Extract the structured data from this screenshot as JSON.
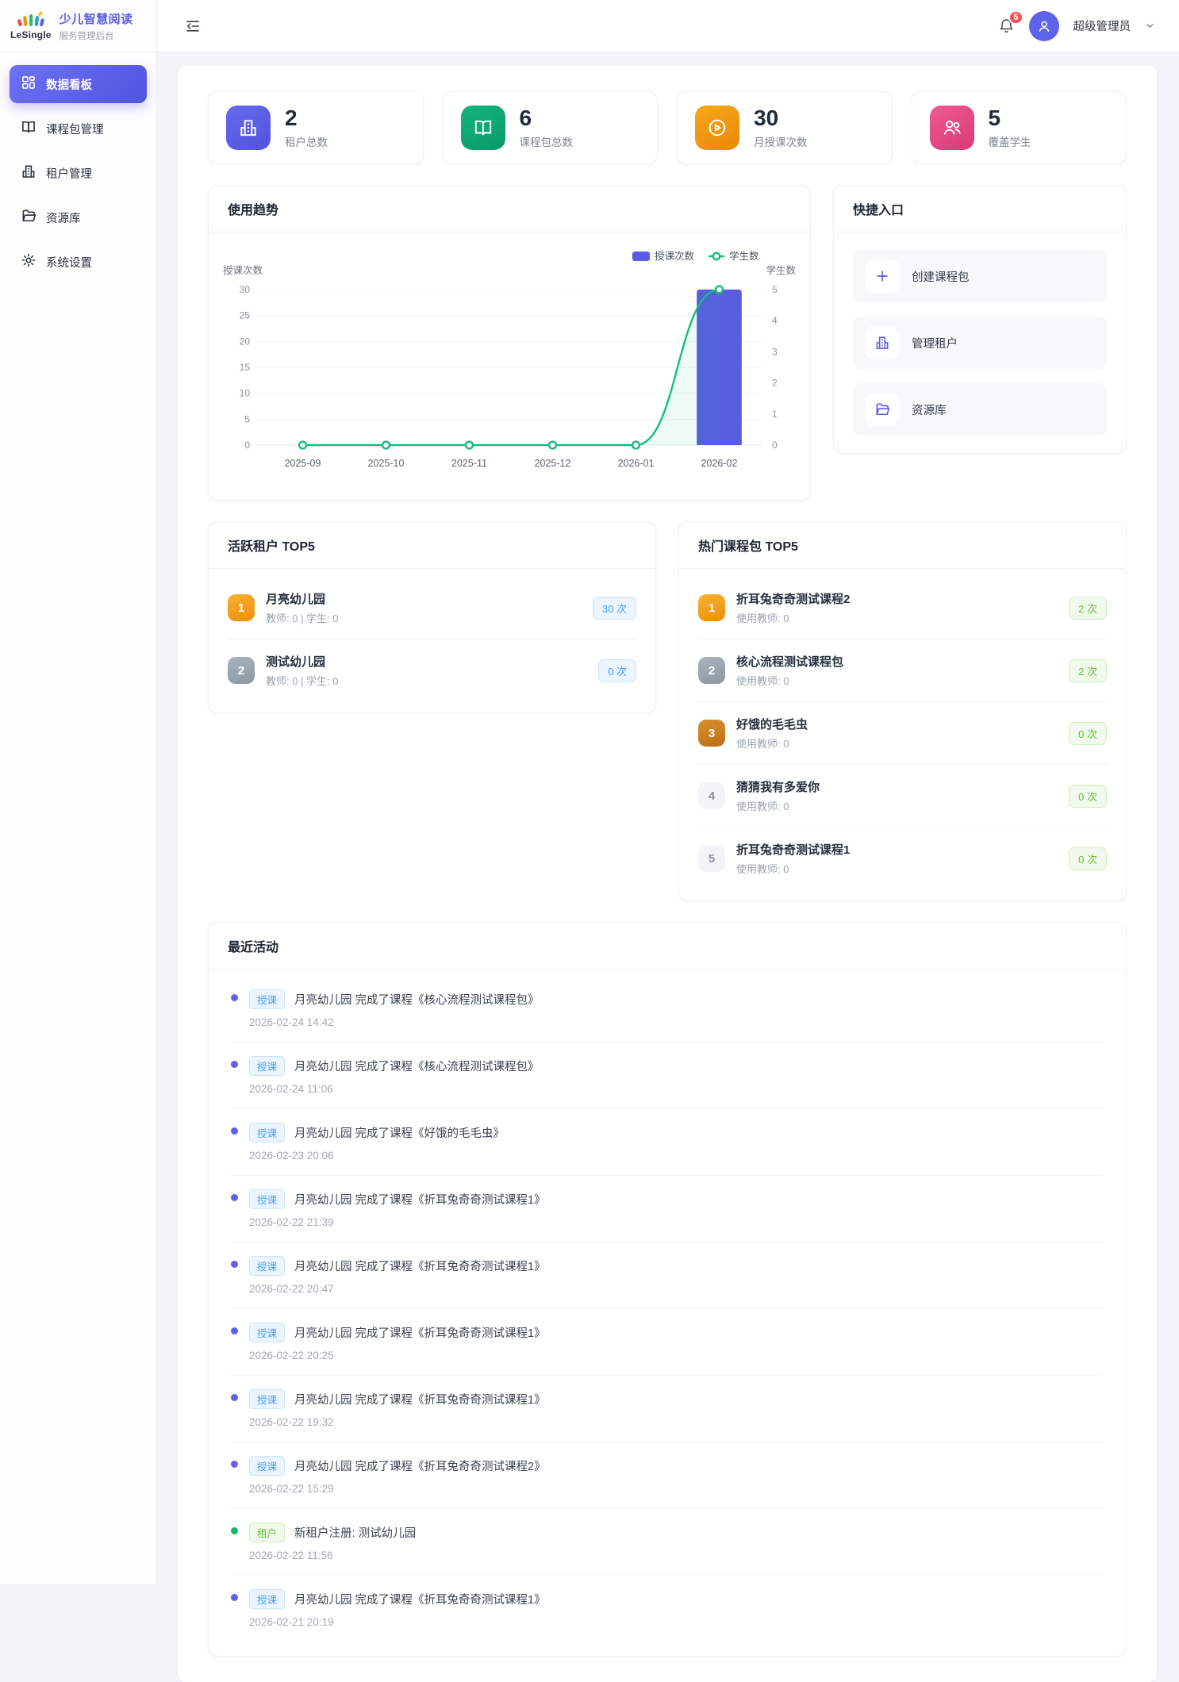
{
  "brand": {
    "logo_text": "LeSingle",
    "title": "少儿智慧阅读",
    "subtitle": "服务管理后台"
  },
  "sidebar": {
    "items": [
      {
        "label": "数据看板",
        "icon": "dashboard-grid",
        "active": true
      },
      {
        "label": "课程包管理",
        "icon": "book"
      },
      {
        "label": "租户管理",
        "icon": "building"
      },
      {
        "label": "资源库",
        "icon": "folder"
      },
      {
        "label": "系统设置",
        "icon": "gear"
      }
    ]
  },
  "header": {
    "notification_count": "5",
    "user_name": "超级管理员"
  },
  "stats": {
    "cards": [
      {
        "value": "2",
        "label": "租户总数",
        "icon": "building",
        "color": "#5a5ce0"
      },
      {
        "value": "6",
        "label": "课程包总数",
        "icon": "book",
        "color": "#10a56f"
      },
      {
        "value": "30",
        "label": "月授课次数",
        "icon": "play-circle",
        "color": "#ef9108"
      },
      {
        "value": "5",
        "label": "覆盖学生",
        "icon": "people",
        "color": "#e5487f"
      }
    ]
  },
  "usage_trend": {
    "title": "使用趋势"
  },
  "chart_data": {
    "type": "bar",
    "x": [
      "2025-09",
      "2025-10",
      "2025-11",
      "2025-12",
      "2026-01",
      "2026-02"
    ],
    "series": [
      {
        "name": "授课次数",
        "kind": "bar",
        "axis": "left",
        "color": "#5a5ce0",
        "values": [
          0,
          0,
          0,
          0,
          0,
          30
        ]
      },
      {
        "name": "学生数",
        "kind": "line",
        "axis": "right",
        "color": "#12c17c",
        "values": [
          0,
          0,
          0,
          0,
          0,
          5
        ]
      }
    ],
    "left_axis": {
      "title": "授课次数",
      "min": 0,
      "max": 30,
      "ticks": [
        0,
        5,
        10,
        15,
        20,
        25,
        30
      ]
    },
    "right_axis": {
      "title": "学生数",
      "min": 0,
      "max": 5,
      "ticks": [
        0,
        1,
        2,
        3,
        4,
        5
      ]
    },
    "legend_position": "top-right",
    "grid": true
  },
  "quick_entry": {
    "title": "快捷入口",
    "items": [
      {
        "label": "创建课程包",
        "icon": "plus"
      },
      {
        "label": "管理租户",
        "icon": "building"
      },
      {
        "label": "资源库",
        "icon": "folder"
      }
    ]
  },
  "active_tenants": {
    "title": "活跃租户 TOP5",
    "items": [
      {
        "rank": "1",
        "name": "月亮幼儿园",
        "meta": "教师: 0 | 学生: 0",
        "count": "30 次"
      },
      {
        "rank": "2",
        "name": "测试幼儿园",
        "meta": "教师: 0 | 学生: 0",
        "count": "0 次"
      }
    ]
  },
  "hot_packages": {
    "title": "热门课程包 TOP5",
    "items": [
      {
        "rank": "1",
        "name": "折耳兔奇奇测试课程2",
        "meta": "使用教师: 0",
        "count": "2 次"
      },
      {
        "rank": "2",
        "name": "核心流程测试课程包",
        "meta": "使用教师: 0",
        "count": "2 次"
      },
      {
        "rank": "3",
        "name": "好饿的毛毛虫",
        "meta": "使用教师: 0",
        "count": "0 次"
      },
      {
        "rank": "4",
        "name": "猜猜我有多爱你",
        "meta": "使用教师: 0",
        "count": "0 次"
      },
      {
        "rank": "5",
        "name": "折耳兔奇奇测试课程1",
        "meta": "使用教师: 0",
        "count": "0 次"
      }
    ]
  },
  "recent_activities": {
    "title": "最近活动",
    "items": [
      {
        "type": "course",
        "tag": "授课",
        "text": "月亮幼儿园 完成了课程《核心流程测试课程包》",
        "time": "2026-02-24 14:42"
      },
      {
        "type": "course",
        "tag": "授课",
        "text": "月亮幼儿园 完成了课程《核心流程测试课程包》",
        "time": "2026-02-24 11:06"
      },
      {
        "type": "course",
        "tag": "授课",
        "text": "月亮幼儿园 完成了课程《好饿的毛毛虫》",
        "time": "2026-02-23 20:06"
      },
      {
        "type": "course",
        "tag": "授课",
        "text": "月亮幼儿园 完成了课程《折耳兔奇奇测试课程1》",
        "time": "2026-02-22 21:39"
      },
      {
        "type": "course",
        "tag": "授课",
        "text": "月亮幼儿园 完成了课程《折耳兔奇奇测试课程1》",
        "time": "2026-02-22 20:47"
      },
      {
        "type": "course",
        "tag": "授课",
        "text": "月亮幼儿园 完成了课程《折耳兔奇奇测试课程1》",
        "time": "2026-02-22 20:25"
      },
      {
        "type": "course",
        "tag": "授课",
        "text": "月亮幼儿园 完成了课程《折耳兔奇奇测试课程1》",
        "time": "2026-02-22 19:32"
      },
      {
        "type": "course",
        "tag": "授课",
        "text": "月亮幼儿园 完成了课程《折耳兔奇奇测试课程2》",
        "time": "2026-02-22 15:29"
      },
      {
        "type": "tenant",
        "tag": "租户",
        "text": "新租户注册: 测试幼儿园",
        "time": "2026-02-22 11:56"
      },
      {
        "type": "course",
        "tag": "授课",
        "text": "月亮幼儿园 完成了课程《折耳兔奇奇测试课程1》",
        "time": "2026-02-21 20:19"
      }
    ]
  }
}
